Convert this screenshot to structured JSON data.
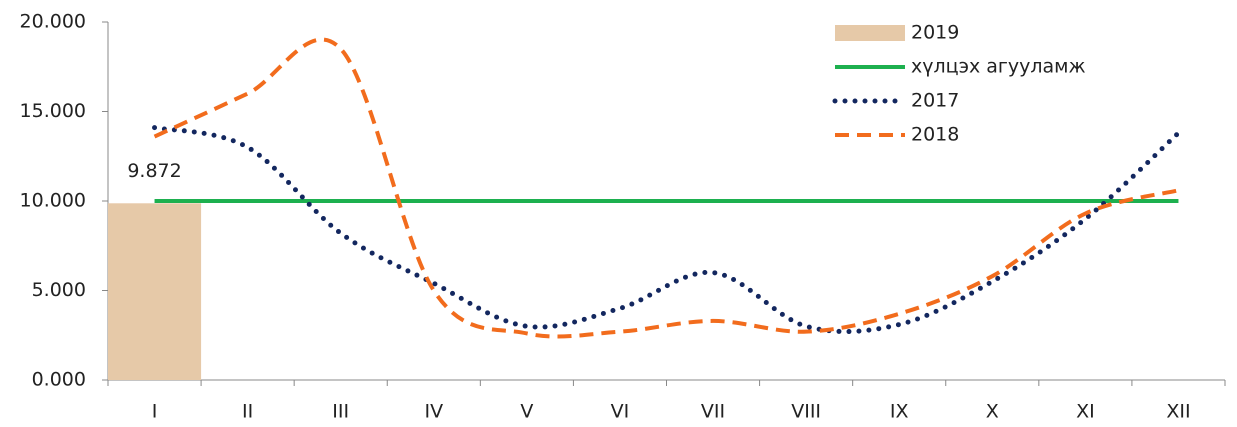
{
  "chart_data": {
    "type": "bar",
    "categories": [
      "I",
      "II",
      "III",
      "IV",
      "V",
      "VI",
      "VII",
      "VIII",
      "IX",
      "X",
      "XI",
      "XII"
    ],
    "series": [
      {
        "name": "2019",
        "type": "bar",
        "color": "#e6c9a8",
        "values": [
          9.872,
          null,
          null,
          null,
          null,
          null,
          null,
          null,
          null,
          null,
          null,
          null
        ]
      },
      {
        "name": "хүлцэх агууламж",
        "type": "line",
        "style": "solid",
        "color": "#1db04f",
        "values": [
          10,
          10,
          10,
          10,
          10,
          10,
          10,
          10,
          10,
          10,
          10,
          10
        ]
      },
      {
        "name": "2017",
        "type": "line",
        "style": "dotted",
        "color": "#13275f",
        "values": [
          14.1,
          13.0,
          8.2,
          5.4,
          3.0,
          4.0,
          6.0,
          3.0,
          3.1,
          5.5,
          9.0,
          13.8
        ]
      },
      {
        "name": "2018",
        "type": "line",
        "style": "dashed",
        "color": "#f26c1d",
        "values": [
          13.6,
          16.0,
          18.5,
          5.0,
          2.6,
          2.7,
          3.3,
          2.7,
          3.7,
          5.8,
          9.3,
          10.6
        ]
      }
    ],
    "ylim": [
      0,
      20
    ],
    "yticks": [
      {
        "value": 0,
        "label": "0.000"
      },
      {
        "value": 5,
        "label": "5.000"
      },
      {
        "value": 10,
        "label": "10.000"
      },
      {
        "value": 15,
        "label": "15.000"
      },
      {
        "value": 20,
        "label": "20.000"
      }
    ],
    "grid": false
  }
}
